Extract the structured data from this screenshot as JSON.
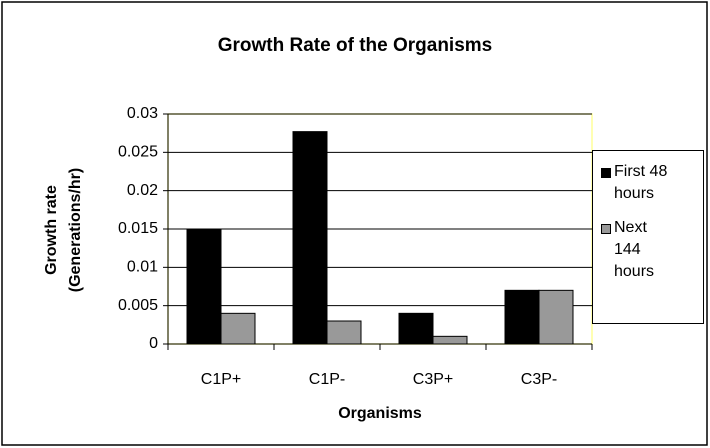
{
  "chart_data": {
    "type": "bar",
    "title": "Growth Rate of the Organisms",
    "xlabel": "Organisms",
    "ylabel": [
      "Growth rate",
      "(Generations/hr)"
    ],
    "categories": [
      "C1P+",
      "C1P-",
      "C3P+",
      "C3P-"
    ],
    "series": [
      {
        "name": "First 48 hours",
        "color": "#000000",
        "values": [
          0.015,
          0.0277,
          0.004,
          0.007
        ]
      },
      {
        "name": "Next 144 hours",
        "color": "#999999",
        "values": [
          0.004,
          0.003,
          0.001,
          0.007
        ]
      }
    ],
    "ylim": [
      0,
      0.03
    ],
    "yticks": [
      0,
      0.005,
      0.01,
      0.015,
      0.02,
      0.025,
      0.03
    ],
    "grid": true,
    "legend": "right"
  }
}
